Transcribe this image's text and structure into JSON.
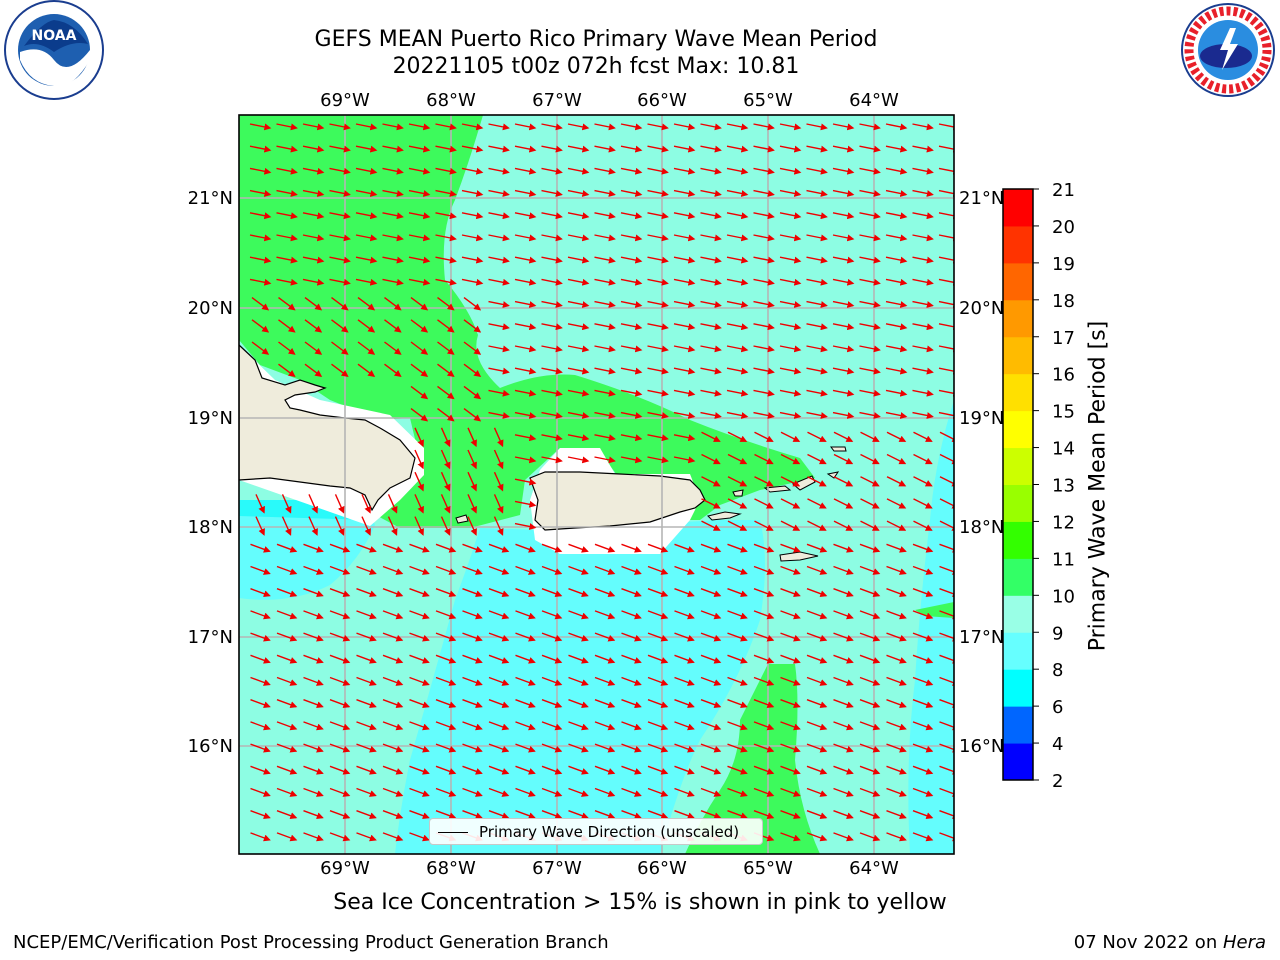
{
  "title_line1": "GEFS MEAN Puerto Rico Primary Wave Mean Period",
  "title_line2": "20221105 t00z 072h fcst   Max: 10.81",
  "lon_labels": [
    "69°W",
    "68°W",
    "67°W",
    "66°W",
    "65°W",
    "64°W"
  ],
  "lat_labels": [
    "21°N",
    "20°N",
    "19°N",
    "18°N",
    "17°N",
    "16°N"
  ],
  "legend_label": "Primary Wave Direction (unscaled)",
  "colorbar": {
    "label": "Primary Wave Mean Period [s]",
    "ticks": [
      "2",
      "4",
      "6",
      "8",
      "9",
      "10",
      "11",
      "12",
      "13",
      "14",
      "15",
      "16",
      "17",
      "18",
      "19",
      "20",
      "21"
    ],
    "colors": [
      "#0000ff",
      "#0066ff",
      "#00ffff",
      "#66ffff",
      "#99ffe6",
      "#33ff66",
      "#33ff00",
      "#99ff00",
      "#ccff00",
      "#ffff00",
      "#ffe000",
      "#ffbb00",
      "#ff9900",
      "#ff6600",
      "#ff3300",
      "#ff0000"
    ]
  },
  "field_colors": {
    "aqua_light": "#8dfde3",
    "cyan": "#64fdfd",
    "green": "#3dfa5c",
    "land": "#efecdc",
    "arrow": "#ee0000"
  },
  "map_extent": {
    "lon": [
      -70.0,
      -63.25
    ],
    "lat": [
      15.0,
      21.75
    ]
  },
  "wave_direction": {
    "north_of_18N": "from east (arrows pointing west)",
    "south_of_18N": "from east-northeast (arrows pointing west-southwest)"
  },
  "sea_ice_note": "Sea Ice Concentration > 15% is shown in pink to yellow",
  "footer_left": "NCEP/EMC/Verification Post Processing Product Generation Branch",
  "footer_date": "07 Nov 2022 on ",
  "footer_host": "Hera",
  "logos": {
    "left": "noaa-logo",
    "right": "nws-logo",
    "noaa_text": "NOAA",
    "nws_text": "NATIONAL WEATHER SERVICE"
  }
}
